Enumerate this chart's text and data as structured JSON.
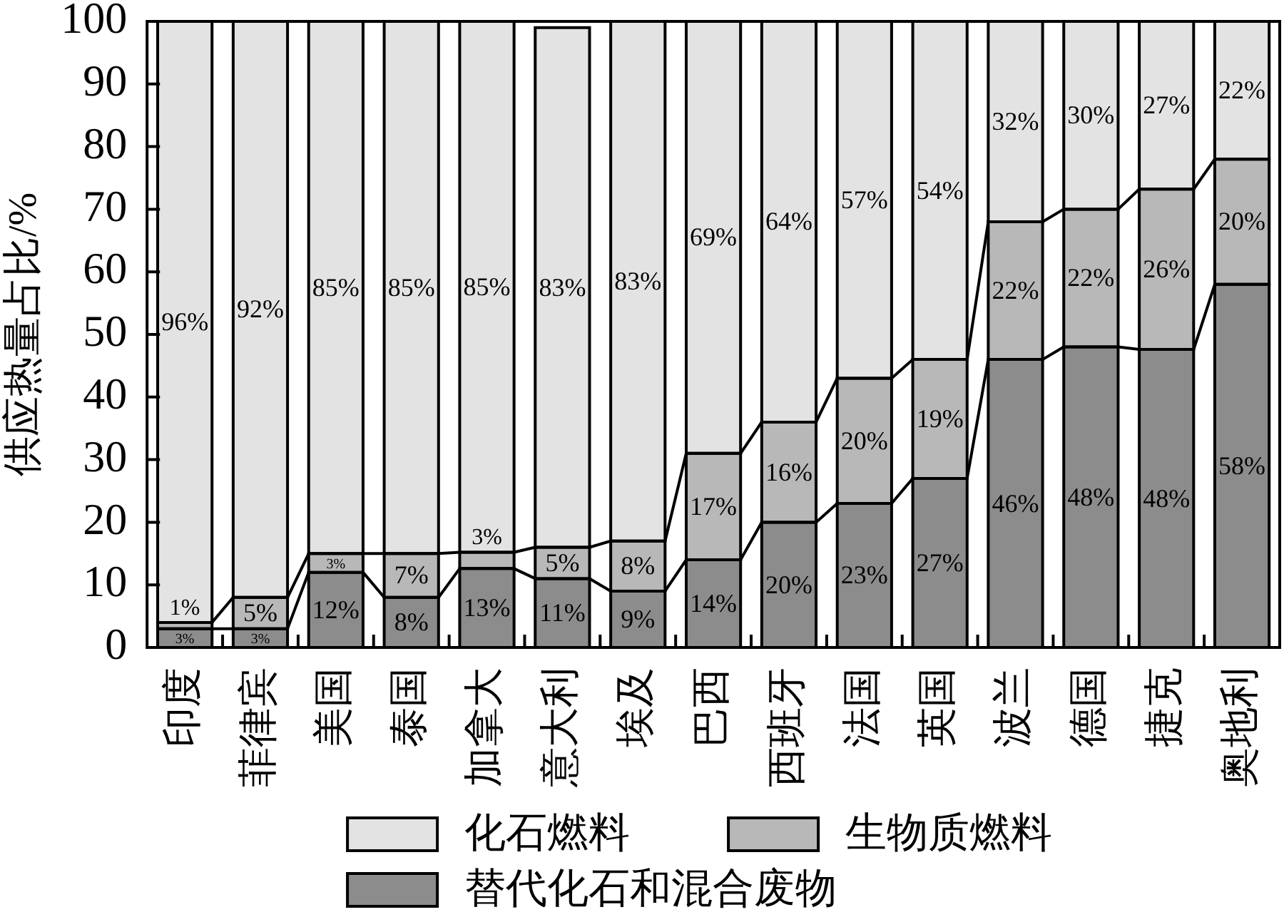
{
  "chart_data": {
    "type": "bar",
    "stacked": true,
    "ylabel": "供应热量占比/%",
    "categories": [
      "印度",
      "菲律宾",
      "美国",
      "泰国",
      "加拿大",
      "意大利",
      "埃及",
      "巴西",
      "西班牙",
      "法国",
      "英国",
      "波兰",
      "德国",
      "捷克",
      "奥地利"
    ],
    "series": [
      {
        "name": "替代化石和混合废物",
        "color": "#8c8c8c",
        "values": [
          3,
          3,
          12,
          8,
          12.6,
          11,
          9,
          14,
          20,
          23,
          27,
          46,
          48,
          47.6,
          58
        ],
        "value_labels": [
          "3%",
          "3%",
          "12%",
          "8%",
          "13%",
          "11%",
          "9%",
          "14%",
          "20%",
          "23%",
          "27%",
          "46%",
          "48%",
          "48%",
          "58%"
        ]
      },
      {
        "name": "生物质燃料",
        "color": "#b8b8b8",
        "values": [
          1,
          5,
          3,
          7,
          2.6,
          5,
          8,
          17,
          16,
          20,
          19,
          22,
          22,
          25.6,
          20
        ],
        "value_labels": [
          "1%",
          "5%",
          "3%",
          "7%",
          "3%",
          "5%",
          "8%",
          "17%",
          "16%",
          "20%",
          "19%",
          "22%",
          "22%",
          "26%",
          "20%"
        ]
      },
      {
        "name": "化石燃料",
        "color": "#e3e3e3",
        "values": [
          96,
          92,
          85,
          85,
          84.8,
          83,
          83,
          69,
          64,
          57,
          54,
          32,
          30,
          26.8,
          22
        ],
        "value_labels": [
          "96%",
          "92%",
          "85%",
          "85%",
          "85%",
          "83%",
          "83%",
          "69%",
          "64%",
          "57%",
          "54%",
          "32%",
          "30%",
          "27%",
          "22%"
        ]
      }
    ],
    "ylim": [
      0,
      100
    ],
    "yticks": [
      0,
      10,
      20,
      30,
      40,
      50,
      60,
      70,
      80,
      90,
      100
    ],
    "legend": "bottom"
  }
}
